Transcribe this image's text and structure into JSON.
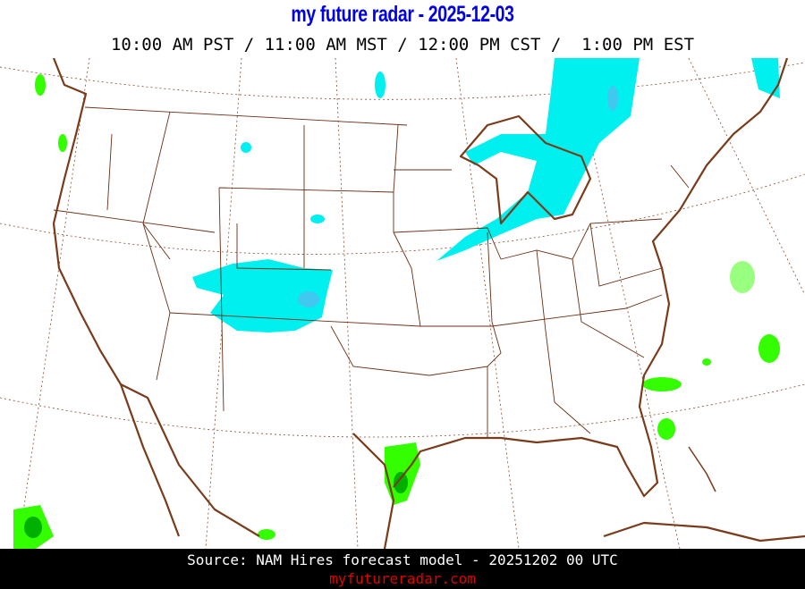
{
  "header": {
    "title": "my future radar - 2025-12-03",
    "times": "10:00 AM PST / 11:00 AM MST / 12:00 PM CST /  1:00 PM EST"
  },
  "map": {
    "region": "Continental United States",
    "colors": {
      "coastline": "#7a3b1a",
      "state_borders": "#6b2e12",
      "graticule": "#8a4a2a",
      "snow_light": "#00f0f0",
      "snow_medium": "#40c8f0",
      "rain_light": "#33ff00",
      "rain_medium": "#00b000"
    }
  },
  "footer": {
    "source": "Source: NAM Hires forecast model - 20251202 00 UTC",
    "site": "myfutureradar.com"
  }
}
